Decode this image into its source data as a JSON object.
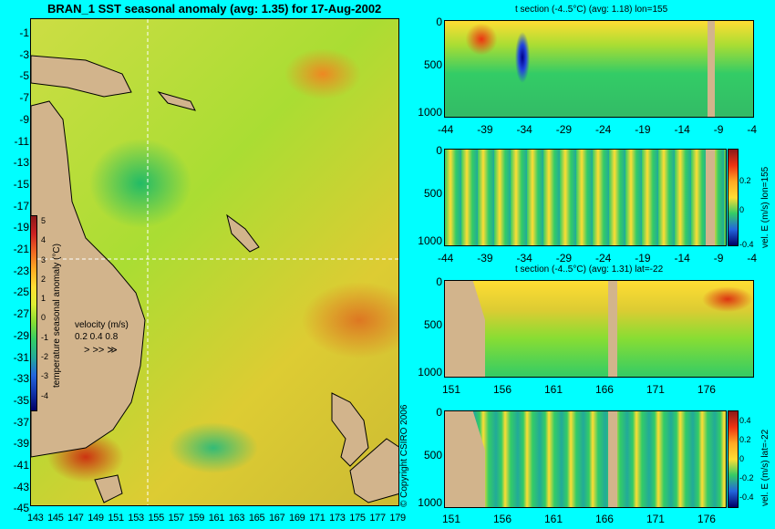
{
  "map": {
    "title": "BRAN_1  SST seasonal anomaly (avg: 1.35) for 17-Aug-2002",
    "y_ticks": [
      "-1",
      "-3",
      "-5",
      "-7",
      "-9",
      "-11",
      "-13",
      "-15",
      "-17",
      "-19",
      "-21",
      "-23",
      "-25",
      "-27",
      "-29",
      "-31",
      "-33",
      "-35",
      "-37",
      "-39",
      "-41",
      "-43",
      "-45"
    ],
    "x_ticks": [
      "143",
      "145",
      "147",
      "149",
      "151",
      "153",
      "155",
      "157",
      "159",
      "161",
      "163",
      "165",
      "167",
      "169",
      "171",
      "173",
      "175",
      "177",
      "179"
    ],
    "colorbar": {
      "label": "temperature seasonal anomaly (°C)",
      "ticks": [
        "5",
        "4",
        "3",
        "2",
        "1",
        "0",
        "-1",
        "-2",
        "-3",
        "-4"
      ]
    },
    "velocity": {
      "label": "velocity (m/s)",
      "values": "0.2 0.4 0.8"
    }
  },
  "panels": [
    {
      "title": "t section (-4..5°C) (avg: 1.18) lon=155",
      "y_ticks": [
        "0",
        "500",
        "1000"
      ],
      "x_ticks": [
        "-44",
        "-39",
        "-34",
        "-29",
        "-24",
        "-19",
        "-14",
        "-9",
        "-4"
      ]
    },
    {
      "title": "",
      "y_ticks": [
        "0",
        "500",
        "1000"
      ],
      "x_ticks": [
        "-44",
        "-39",
        "-34",
        "-29",
        "-24",
        "-19",
        "-14",
        "-9",
        "-4"
      ],
      "colorbar_label": "vel. E (m/s) lon=155",
      "colorbar_ticks": [
        "0.2",
        "0",
        "-0.4"
      ]
    },
    {
      "title": "t section (-4..5°C) (avg: 1.31) lat=-22",
      "y_ticks": [
        "0",
        "500",
        "1000"
      ],
      "x_ticks": [
        "151",
        "156",
        "161",
        "166",
        "171",
        "176"
      ]
    },
    {
      "title": "",
      "y_ticks": [
        "0",
        "500",
        "1000"
      ],
      "x_ticks": [
        "151",
        "156",
        "161",
        "166",
        "171",
        "176"
      ],
      "colorbar_label": "vel. E (m/s) lat=-22",
      "colorbar_ticks": [
        "0.4",
        "0.2",
        "0",
        "-0.2",
        "-0.4"
      ]
    }
  ],
  "copyright": "© Copyright CSIRO 2006",
  "colors": {
    "background": "#00ffff",
    "land": "#d2b48c",
    "ocean_base": "#aadd33"
  }
}
